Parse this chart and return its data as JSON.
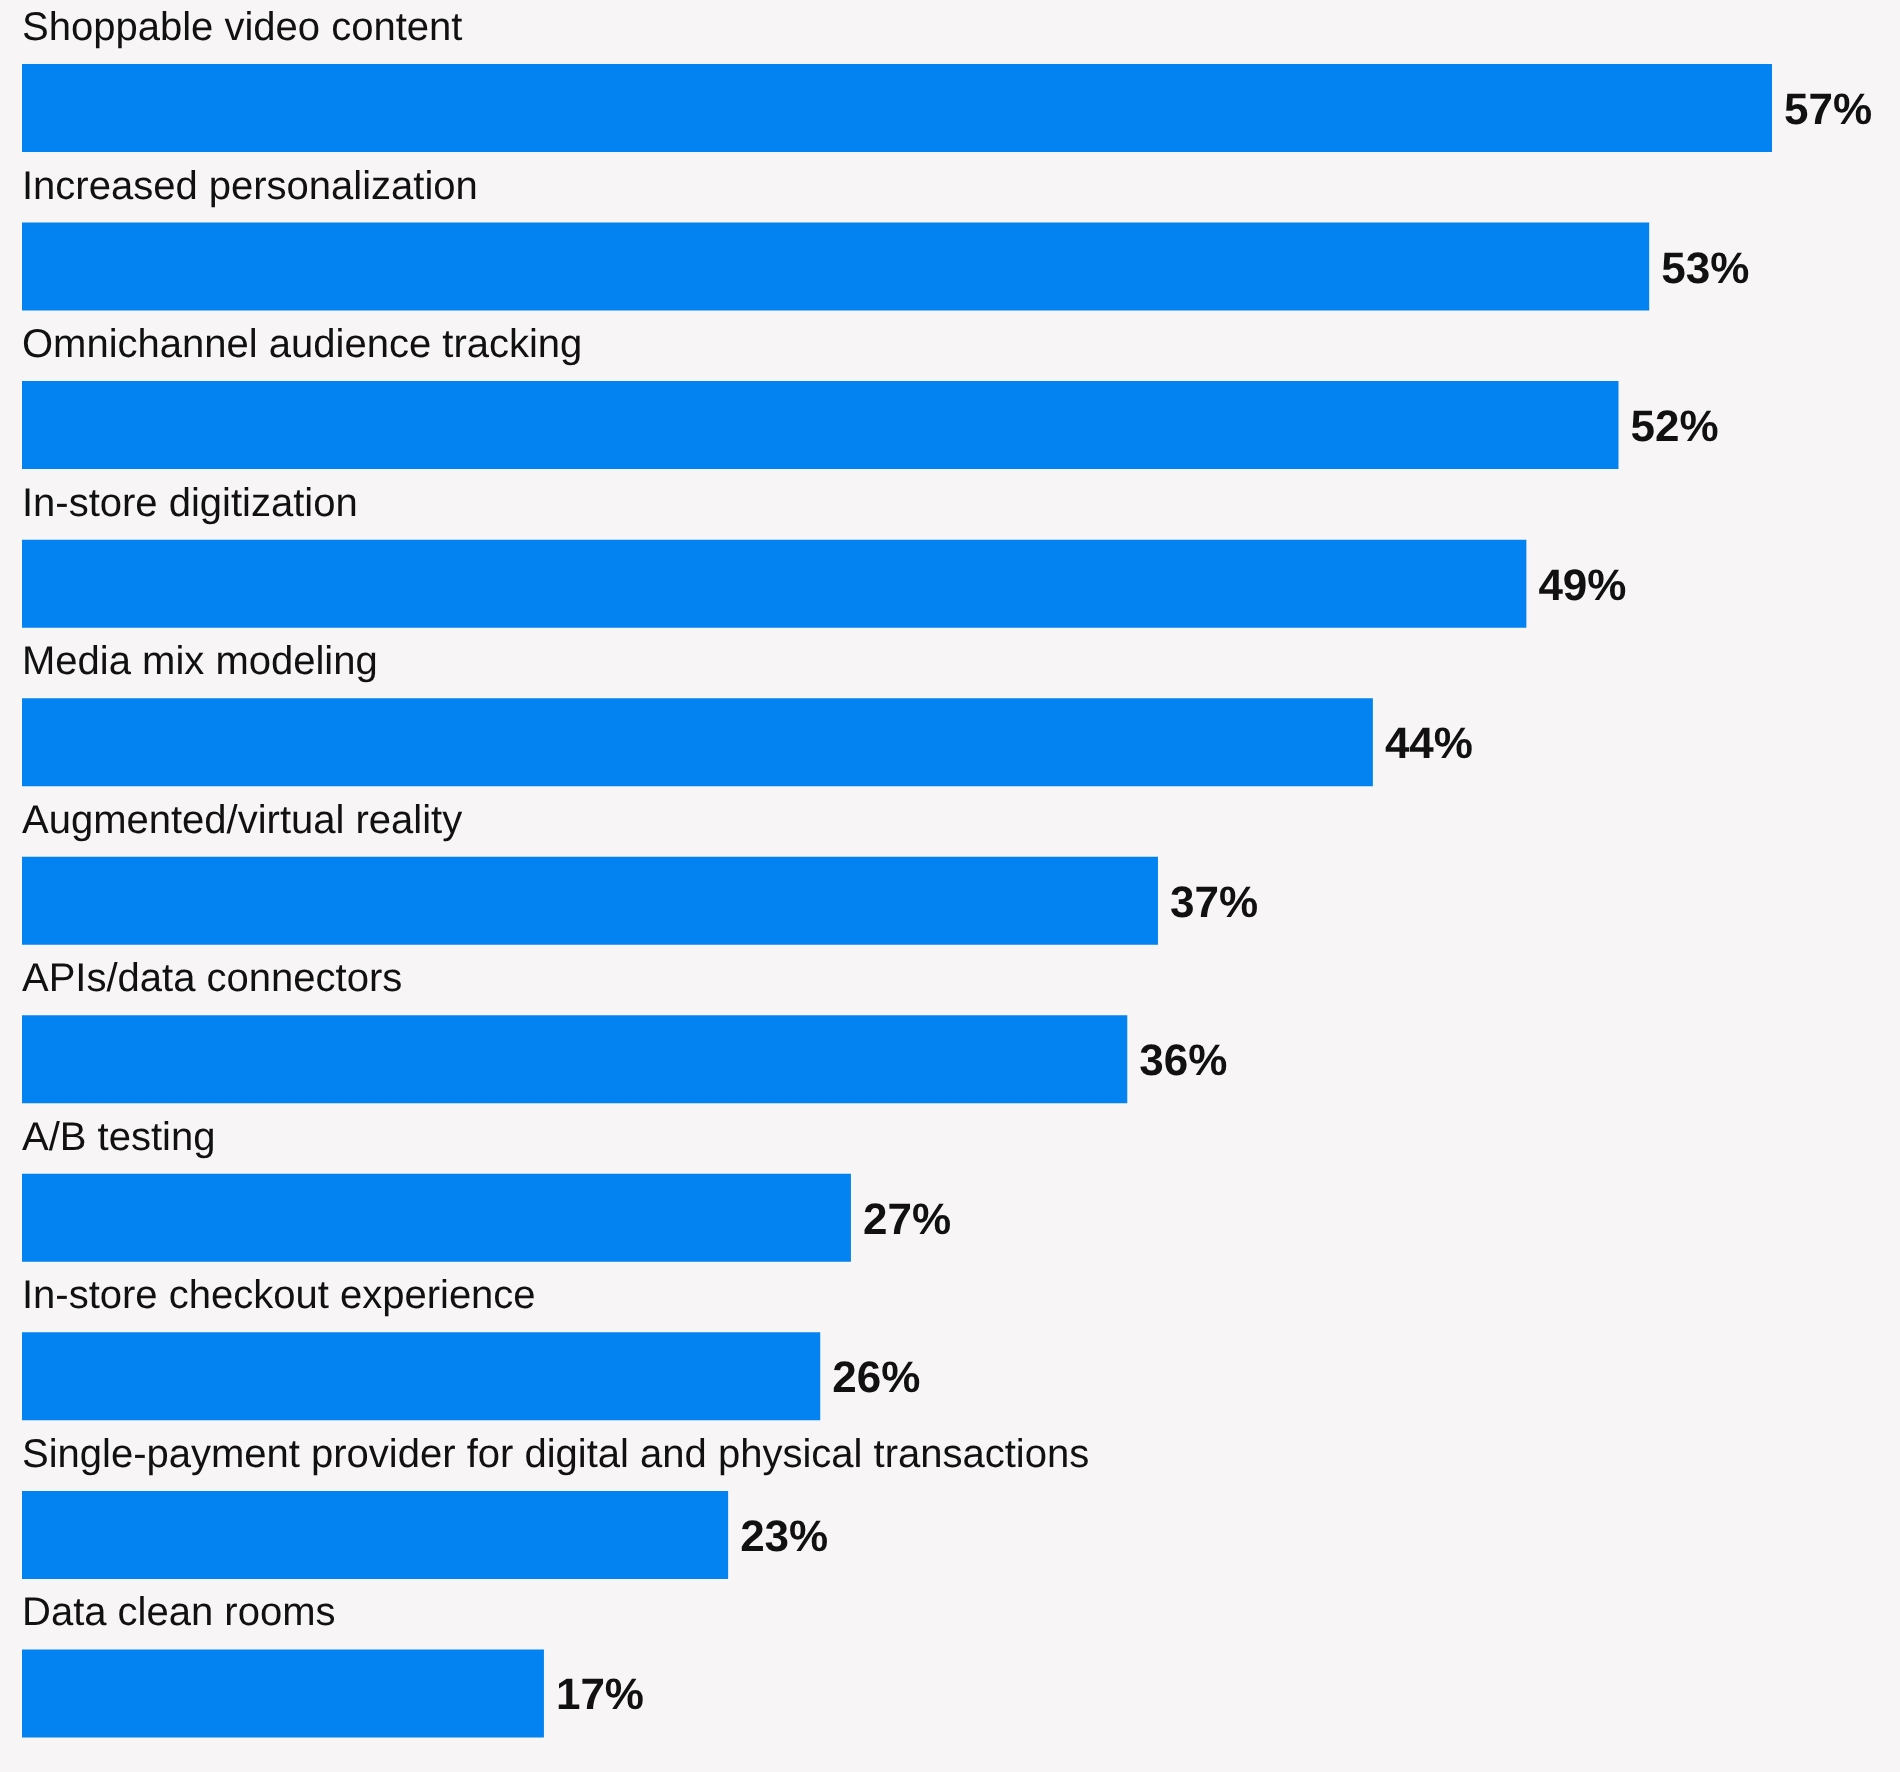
{
  "chart_data": {
    "type": "bar",
    "orientation": "horizontal",
    "categories": [
      "Shoppable video content",
      "Increased personalization",
      "Omnichannel audience tracking",
      "In-store digitization",
      "Media mix modeling",
      "Augmented/virtual reality",
      "APIs/data connectors",
      "A/B testing",
      "In-store checkout experience",
      "Single-payment provider for digital and physical transactions",
      "Data clean rooms"
    ],
    "values": [
      57,
      53,
      52,
      49,
      44,
      37,
      36,
      27,
      26,
      23,
      17
    ],
    "value_labels": [
      "57%",
      "53%",
      "52%",
      "49%",
      "44%",
      "37%",
      "36%",
      "27%",
      "26%",
      "23%",
      "17%"
    ],
    "color": "#0383f1"
  }
}
